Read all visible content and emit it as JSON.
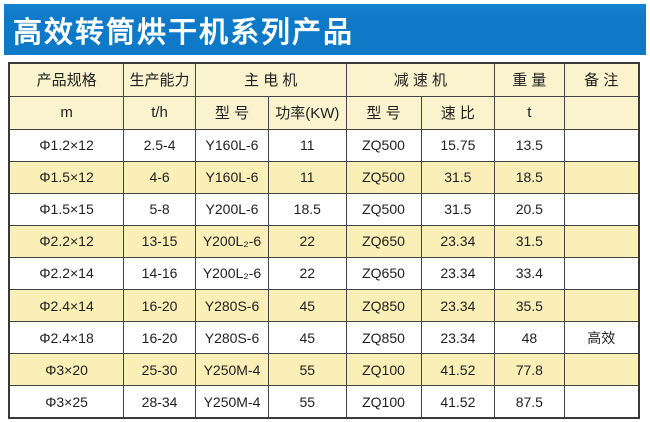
{
  "banner": {
    "title": "高效转筒烘干机系列产品",
    "bg_color": "#0e79c6",
    "bg_color_light": "#1583d2",
    "text_color": "#ffffff"
  },
  "table": {
    "header_row1": [
      "产品规格",
      "生产能力",
      "主 电 机",
      "减 速 机",
      "重 量",
      "备 注"
    ],
    "header_row2": [
      "m",
      "t/h",
      "型 号",
      "功率(KW)",
      "型 号",
      "速 比",
      "t",
      ""
    ],
    "rows": [
      [
        "Φ1.2×12",
        "2.5-4",
        "Y160L-6",
        "11",
        "ZQ500",
        "15.75",
        "13.5",
        ""
      ],
      [
        "Φ1.5×12",
        "4-6",
        "Y160L-6",
        "11",
        "ZQ500",
        "31.5",
        "18.5",
        ""
      ],
      [
        "Φ1.5×15",
        "5-8",
        "Y200L-6",
        "18.5",
        "ZQ500",
        "31.5",
        "20.5",
        ""
      ],
      [
        "Φ2.2×12",
        "13-15",
        "Y200L₂-6",
        "22",
        "ZQ650",
        "23.34",
        "31.5",
        ""
      ],
      [
        "Φ2.2×14",
        "14-16",
        "Y200L₂-6",
        "22",
        "ZQ650",
        "23.34",
        "33.4",
        ""
      ],
      [
        "Φ2.4×14",
        "16-20",
        "Y280S-6",
        "45",
        "ZQ850",
        "23.34",
        "35.5",
        ""
      ],
      [
        "Φ2.4×18",
        "16-20",
        "Y280S-6",
        "45",
        "ZQ850",
        "23.34",
        "48",
        "高效"
      ],
      [
        "Φ3×20",
        "25-30",
        "Y250M-4",
        "55",
        "ZQ100",
        "41.52",
        "77.8",
        ""
      ],
      [
        "Φ3×25",
        "28-34",
        "Y250M-4",
        "55",
        "ZQ100",
        "41.52",
        "87.5",
        ""
      ]
    ],
    "colors": {
      "header_bg": "#faf3cd",
      "alt_row_bg": "#f9efb7",
      "border": "#454545"
    }
  }
}
